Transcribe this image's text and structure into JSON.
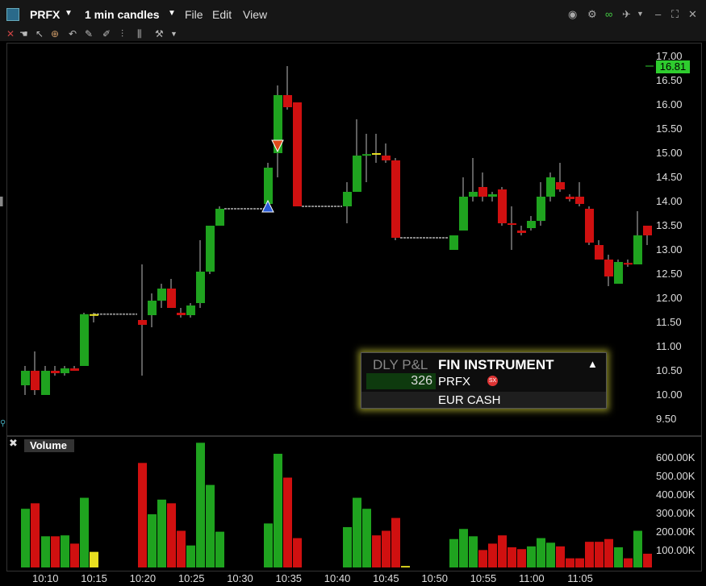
{
  "header": {
    "symbol": "PRFX",
    "interval": "1 min candles",
    "menu": [
      "File",
      "Edit",
      "View"
    ]
  },
  "chart": {
    "last_price": "16.81",
    "price_labels": [
      "17.00",
      "16.50",
      "16.00",
      "15.50",
      "15.00",
      "14.50",
      "14.00",
      "13.50",
      "13.00",
      "12.50",
      "12.00",
      "11.50",
      "11.00",
      "10.50",
      "10.00",
      "9.50"
    ],
    "volume_title": "Volume",
    "volume_labels": [
      "600.00K",
      "500.00K",
      "400.00K",
      "300.00K",
      "200.00K",
      "100.00K"
    ],
    "time_labels": [
      "10:10",
      "10:15",
      "10:20",
      "10:25",
      "10:30",
      "10:35",
      "10:40",
      "10:45",
      "10:50",
      "10:55",
      "11:00",
      "11:05"
    ]
  },
  "tooltip": {
    "pnl_header": "DLY P&L",
    "instrument_header": "FIN INSTRUMENT",
    "pnl_value": "326",
    "instrument_symbol": "PRFX",
    "instrument_desc": "EUR CASH"
  },
  "colors": {
    "up": "#1fa31f",
    "down": "#d01010",
    "flat_marker": "#e8e020",
    "badge": "#2ecc2e"
  }
}
